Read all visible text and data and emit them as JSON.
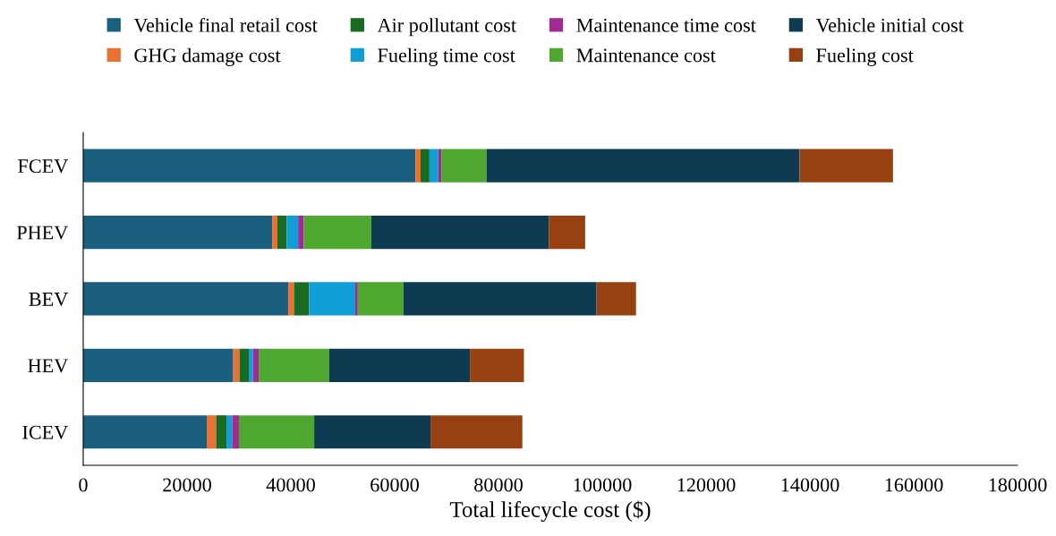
{
  "chart_data": {
    "type": "bar",
    "orientation": "horizontal",
    "stacked": true,
    "xlabel": "Total lifecycle cost ($)",
    "categories": [
      "FCEV",
      "PHEV",
      "BEV",
      "HEV",
      "ICEV"
    ],
    "series": [
      {
        "name": "Vehicle final retail cost",
        "color": "#1a5f80",
        "values": [
          64000,
          36400,
          39500,
          28900,
          23800
        ]
      },
      {
        "name": "GHG damage cost",
        "color": "#e97132",
        "values": [
          1000,
          1000,
          1100,
          1200,
          1800
        ]
      },
      {
        "name": "Air pollutant cost",
        "color": "#196b24",
        "values": [
          1700,
          1800,
          2900,
          1800,
          2000
        ]
      },
      {
        "name": "Fueling time cost",
        "color": "#0f9ed5",
        "values": [
          1700,
          2200,
          8900,
          800,
          1100
        ]
      },
      {
        "name": "Maintenance time cost",
        "color": "#a02b93",
        "values": [
          600,
          1100,
          500,
          1100,
          1300
        ]
      },
      {
        "name": "Maintenance cost",
        "color": "#4ea72e",
        "values": [
          8700,
          13000,
          8800,
          13600,
          14500
        ]
      },
      {
        "name": "Vehicle initial cost",
        "color": "#0e3a52",
        "values": [
          60300,
          34200,
          37200,
          27100,
          22400
        ]
      },
      {
        "name": "Fueling cost",
        "color": "#974012",
        "values": [
          18000,
          7000,
          7600,
          10400,
          17700
        ]
      }
    ],
    "xlim": [
      0,
      180000
    ],
    "xticks": [
      0,
      20000,
      40000,
      60000,
      80000,
      100000,
      120000,
      140000,
      160000,
      180000
    ],
    "grid": false,
    "legend": "top",
    "marker": "square"
  }
}
